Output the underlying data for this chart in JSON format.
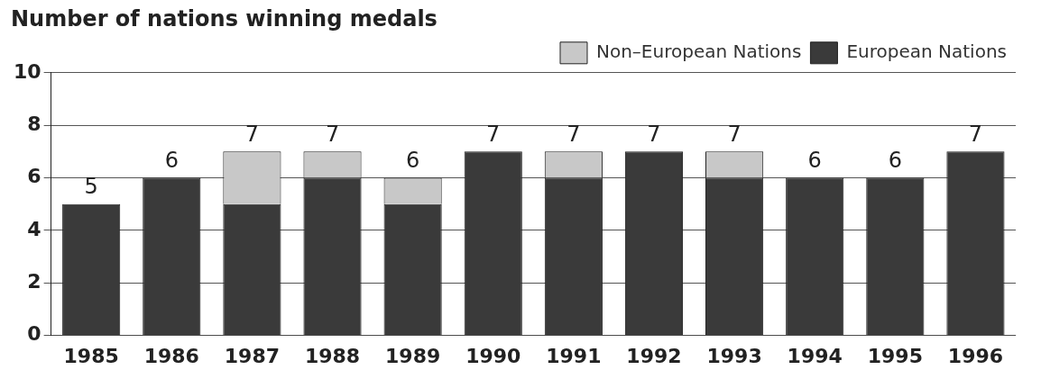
{
  "chart_data": {
    "type": "bar",
    "title": "Number of nations winning medals",
    "categories": [
      "1985",
      "1986",
      "1987",
      "1988",
      "1989",
      "1990",
      "1991",
      "1992",
      "1993",
      "1994",
      "1995",
      "1996"
    ],
    "series": [
      {
        "name": "European Nations",
        "color": "#3a3a3a",
        "values": [
          5,
          6,
          5,
          6,
          5,
          7,
          6,
          7,
          6,
          6,
          6,
          7
        ]
      },
      {
        "name": "Non–European Nations",
        "color": "#c8c8c8",
        "values": [
          0,
          0,
          2,
          1,
          1,
          0,
          1,
          0,
          1,
          0,
          0,
          0
        ]
      }
    ],
    "stacked": true,
    "ylim": [
      0,
      10
    ],
    "yticks": [
      0,
      2,
      4,
      6,
      8,
      10
    ],
    "grid": "y",
    "legend": "top right",
    "totals": [
      "5",
      "6",
      "7",
      "7",
      "6",
      "7",
      "7",
      "7",
      "7",
      "6",
      "6",
      "7"
    ]
  }
}
